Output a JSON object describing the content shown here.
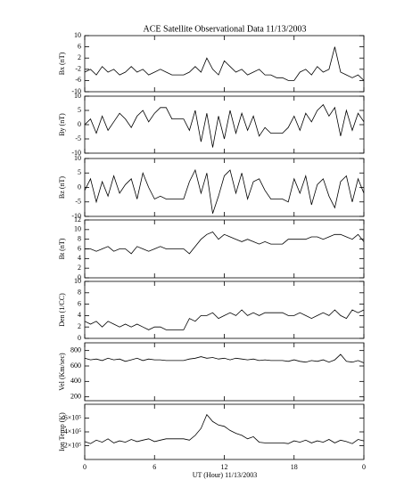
{
  "title": "ACE Satellite Observational Data   11/13/2003",
  "xlabel": "UT (Hour)  11/13/2003",
  "x": [
    0,
    0.5,
    1,
    1.5,
    2,
    2.5,
    3,
    3.5,
    4,
    4.5,
    5,
    5.5,
    6,
    6.5,
    7,
    7.5,
    8,
    8.5,
    9,
    9.5,
    10,
    10.5,
    11,
    11.5,
    12,
    12.5,
    13,
    13.5,
    14,
    14.5,
    15,
    15.5,
    16,
    16.5,
    17,
    17.5,
    18,
    18.5,
    19,
    19.5,
    20,
    20.5,
    21,
    21.5,
    22,
    22.5,
    23,
    23.5,
    24
  ],
  "xlim": [
    0,
    24
  ],
  "xticks": [
    0,
    6,
    12,
    18,
    {
      "value": 24,
      "label": "0"
    }
  ],
  "chart_data": [
    {
      "type": "line",
      "ylabel": "Bx (nT)",
      "color": "#000000",
      "ylim": [
        -10,
        10
      ],
      "yticks": [
        -10,
        -6,
        -2,
        2,
        6,
        10
      ],
      "values": [
        -3,
        -2,
        -4,
        -1,
        -3,
        -2,
        -4,
        -3,
        -1,
        -3,
        -2,
        -4,
        -3,
        -2,
        -3,
        -4,
        -4,
        -4,
        -3,
        -1,
        -3,
        2,
        -2,
        -4,
        1,
        -1,
        -3,
        -2,
        -4,
        -3,
        -2,
        -4,
        -4,
        -5,
        -5,
        -6,
        -6,
        -3,
        -2,
        -4,
        -1,
        -3,
        -2,
        6,
        -3,
        -4,
        -5,
        -4,
        -6
      ]
    },
    {
      "type": "line",
      "ylabel": "By (nT)",
      "color": "#000000",
      "ylim": [
        -10,
        10
      ],
      "yticks": [
        -10,
        -5,
        0,
        5,
        10
      ],
      "values": [
        0,
        2,
        -3,
        3,
        -2,
        1,
        4,
        2,
        -1,
        3,
        5,
        1,
        4,
        6,
        6,
        2,
        2,
        2,
        -2,
        5,
        -6,
        4,
        -8,
        3,
        -5,
        5,
        -3,
        4,
        -2,
        3,
        -4,
        -1,
        -3,
        -3,
        -3,
        -1,
        3,
        -2,
        4,
        1,
        5,
        7,
        3,
        6,
        -4,
        5,
        -2,
        4,
        1
      ]
    },
    {
      "type": "line",
      "ylabel": "Bz (nT)",
      "color": "#000000",
      "ylim": [
        -10,
        10
      ],
      "yticks": [
        -10,
        -5,
        0,
        5,
        10
      ],
      "values": [
        -1,
        3,
        -5,
        2,
        -3,
        4,
        -2,
        1,
        3,
        -4,
        5,
        0,
        -4,
        -3,
        -4,
        -4,
        -4,
        -4,
        2,
        6,
        -2,
        5,
        -9,
        -3,
        4,
        6,
        -2,
        5,
        -4,
        2,
        3,
        -1,
        -4,
        -4,
        -4,
        -5,
        3,
        -2,
        4,
        -6,
        1,
        3,
        -3,
        -7,
        2,
        4,
        -5,
        3,
        -2
      ]
    },
    {
      "type": "line",
      "ylabel": "Bt (nT)",
      "color": "#000000",
      "ylim": [
        0,
        12
      ],
      "yticks": [
        0,
        2,
        4,
        6,
        8,
        10,
        12
      ],
      "values": [
        6,
        6,
        5.5,
        6,
        6.5,
        5.5,
        6,
        6,
        5,
        6.5,
        6,
        5.5,
        6,
        6.5,
        6,
        6,
        6,
        6,
        5,
        6.5,
        8,
        9,
        9.5,
        8,
        9,
        8.5,
        8,
        7.5,
        8,
        7.5,
        7,
        7.5,
        7,
        7,
        7,
        8,
        8,
        8,
        8,
        8.5,
        8.5,
        8,
        8.5,
        9,
        9,
        8.5,
        8,
        9,
        7.5
      ]
    },
    {
      "type": "line",
      "ylabel": "Den (1/CC)",
      "color": "#000000",
      "ylim": [
        0,
        10
      ],
      "yticks": [
        0,
        2,
        4,
        6,
        8,
        10
      ],
      "values": [
        3,
        2.5,
        3,
        2,
        3,
        2.5,
        2,
        2.5,
        2,
        2.5,
        2,
        1.5,
        2,
        2,
        1.5,
        1.5,
        1.5,
        1.5,
        3.5,
        3,
        4,
        4,
        4.5,
        3.5,
        4,
        4.5,
        4,
        5,
        4,
        4.5,
        4,
        4.5,
        4.5,
        4.5,
        4.5,
        4,
        4,
        4.5,
        4,
        3.5,
        4,
        4.5,
        4,
        5,
        4,
        3.5,
        5,
        4.5,
        5
      ]
    },
    {
      "type": "line",
      "ylabel": "Vel (Km/sec)",
      "color": "#000000",
      "ylim": [
        150,
        900
      ],
      "yticks": [
        200,
        400,
        600,
        800
      ],
      "values": [
        700,
        680,
        690,
        670,
        700,
        680,
        690,
        660,
        680,
        700,
        670,
        690,
        680,
        680,
        670,
        670,
        670,
        670,
        690,
        700,
        720,
        700,
        710,
        690,
        700,
        680,
        700,
        690,
        680,
        690,
        670,
        680,
        670,
        670,
        670,
        660,
        680,
        660,
        650,
        670,
        660,
        680,
        650,
        680,
        750,
        660,
        650,
        670,
        640
      ]
    },
    {
      "type": "line",
      "ylabel": "Ion Temp (K)",
      "color": "#000000",
      "ylim": [
        0,
        800000
      ],
      "yticks": [
        {
          "value": 200000,
          "label": "2×10⁵"
        },
        {
          "value": 400000,
          "label": "4×10⁵"
        },
        {
          "value": 600000,
          "label": "6×10⁵"
        }
      ],
      "values": [
        260000,
        230000,
        280000,
        250000,
        300000,
        240000,
        270000,
        250000,
        290000,
        260000,
        280000,
        300000,
        260000,
        280000,
        300000,
        300000,
        300000,
        300000,
        280000,
        350000,
        450000,
        650000,
        550000,
        500000,
        480000,
        420000,
        380000,
        350000,
        300000,
        330000,
        250000,
        240000,
        240000,
        240000,
        240000,
        230000,
        270000,
        250000,
        280000,
        240000,
        270000,
        250000,
        290000,
        240000,
        280000,
        260000,
        230000,
        290000,
        270000
      ]
    }
  ]
}
